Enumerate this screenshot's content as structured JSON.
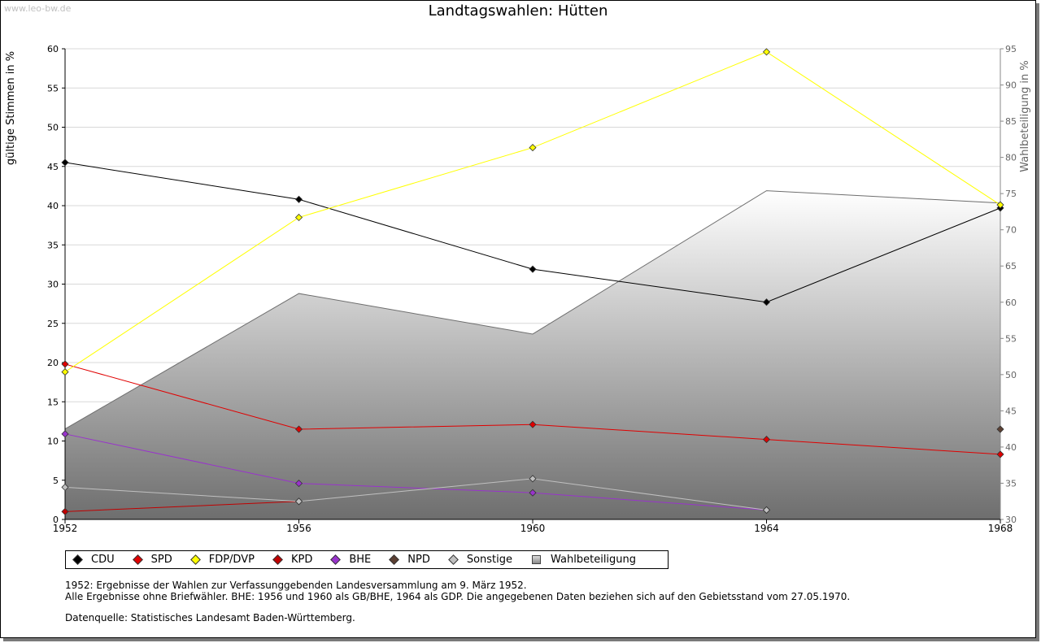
{
  "watermark": "www.leo-bw.de",
  "chart_data": {
    "type": "line",
    "title": "Landtagswahlen: Hütten",
    "ylabel": "gültige Stimmen in %",
    "y2label": "Wahlbeteiligung in %",
    "categories": [
      "1952",
      "1956",
      "1960",
      "1964",
      "1968"
    ],
    "ylim": [
      0,
      60
    ],
    "yticks": [
      "0",
      "5",
      "10",
      "15",
      "20",
      "25",
      "30",
      "35",
      "40",
      "45",
      "50",
      "55",
      "60"
    ],
    "y2lim": [
      30,
      95
    ],
    "y2ticks": [
      "30",
      "35",
      "40",
      "45",
      "50",
      "55",
      "60",
      "65",
      "70",
      "75",
      "80",
      "85",
      "90",
      "95"
    ],
    "series": [
      {
        "name": "CDU",
        "color": "#000000",
        "values": [
          45.5,
          40.8,
          31.9,
          27.7,
          39.7
        ]
      },
      {
        "name": "SPD",
        "color": "#e00000",
        "values": [
          19.8,
          11.5,
          12.1,
          10.2,
          8.3
        ]
      },
      {
        "name": "FDP/DVP",
        "color": "#ffff00",
        "values": [
          18.8,
          38.5,
          47.4,
          59.6,
          40.1
        ]
      },
      {
        "name": "KPD",
        "color": "#c00000",
        "values": [
          1.0,
          2.3,
          null,
          null,
          null
        ]
      },
      {
        "name": "BHE",
        "color": "#9933cc",
        "values": [
          10.9,
          4.6,
          3.4,
          1.2,
          null
        ]
      },
      {
        "name": "NPD",
        "color": "#5c4033",
        "values": [
          null,
          null,
          null,
          null,
          11.5
        ]
      },
      {
        "name": "Sonstige",
        "color": "#c0c0c0",
        "values": [
          4.1,
          2.3,
          5.2,
          1.2,
          null
        ]
      }
    ],
    "turnout": {
      "name": "Wahlbeteiligung",
      "axis": "right",
      "values": [
        42.5,
        61.2,
        55.6,
        75.4,
        73.7
      ]
    }
  },
  "legend": [
    {
      "label": "CDU",
      "color": "#000000"
    },
    {
      "label": "SPD",
      "color": "#e00000"
    },
    {
      "label": "FDP/DVP",
      "color": "#ffff00"
    },
    {
      "label": "KPD",
      "color": "#c00000"
    },
    {
      "label": "BHE",
      "color": "#9933cc"
    },
    {
      "label": "NPD",
      "color": "#5c4033"
    },
    {
      "label": "Sonstige",
      "color": "#c0c0c0"
    },
    {
      "label": "Wahlbeteiligung",
      "color": "#aaaaaa"
    }
  ],
  "notes": {
    "line1": "1952: Ergebnisse der Wahlen zur Verfassunggebenden Landesversammlung am 9. März 1952.",
    "line2": "Alle Ergebnisse ohne Briefwähler. BHE: 1956 und 1960 als GB/BHE, 1964 als GDP. Die angegebenen Daten beziehen sich auf den Gebietsstand vom 27.05.1970.",
    "source": "Datenquelle: Statistisches Landesamt Baden-Württemberg."
  }
}
